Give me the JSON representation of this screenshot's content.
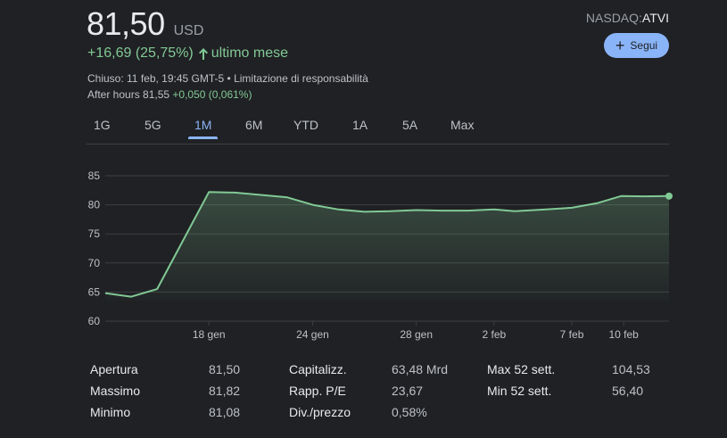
{
  "quote": {
    "price": "81,50",
    "currency": "USD",
    "change": "+16,69 (25,75%)",
    "period": "ultimo mese",
    "closed_info": "Chiuso: 11 feb, 19:45 GMT-5 • Limitazione di responsabilità",
    "after_hours_label": "After hours 81,55",
    "after_hours_change": "+0,050 (0,061%)"
  },
  "ticker": {
    "exchange": "NASDAQ:",
    "symbol": "ATVI"
  },
  "follow_button": {
    "label": "Segui"
  },
  "tabs": [
    {
      "label": "1G",
      "active": false
    },
    {
      "label": "5G",
      "active": false
    },
    {
      "label": "1M",
      "active": true
    },
    {
      "label": "6M",
      "active": false
    },
    {
      "label": "YTD",
      "active": false
    },
    {
      "label": "1A",
      "active": false
    },
    {
      "label": "5A",
      "active": false
    },
    {
      "label": "Max",
      "active": false
    }
  ],
  "colors": {
    "line": "#81c995",
    "positive": "#81c995",
    "accent": "#8ab4f8",
    "grid": "#3c4043",
    "background": "#202124"
  },
  "chart_data": {
    "type": "area",
    "title": "",
    "xlabel": "",
    "ylabel": "",
    "ylim": [
      60,
      85
    ],
    "yticks": [
      60,
      65,
      70,
      75,
      80,
      85
    ],
    "ytick_labels": [
      "60",
      "65",
      "70",
      "75",
      "80",
      "85"
    ],
    "xtick_labels": [
      "18 gen",
      "24 gen",
      "28 gen",
      "2 feb",
      "7 feb",
      "10 feb"
    ],
    "xtick_index": [
      4,
      8,
      12,
      15,
      18,
      20
    ],
    "grid": true,
    "series": [
      {
        "values": [
          64.81,
          64.2,
          65.5,
          82.2,
          82.1,
          81.7,
          81.3,
          80.0,
          79.2,
          78.8,
          78.9,
          79.1,
          79.0,
          79.0,
          79.2,
          78.9,
          79.2,
          79.5,
          80.3,
          81.5,
          81.45,
          81.5
        ]
      }
    ],
    "x_index": [
      0,
      1,
      2,
      4,
      5,
      6,
      7,
      8,
      9,
      10,
      11,
      12,
      13,
      14,
      15,
      15.8,
      17,
      18,
      19,
      19.9,
      20.8,
      21.75
    ]
  },
  "stats": [
    {
      "label": "Apertura",
      "value": "81,50"
    },
    {
      "label": "Massimo",
      "value": "81,82"
    },
    {
      "label": "Minimo",
      "value": "81,08"
    },
    {
      "label": "Capitalizz.",
      "value": "63,48 Mrd"
    },
    {
      "label": "Rapp. P/E",
      "value": "23,67"
    },
    {
      "label": "Div./prezzo",
      "value": "0,58%"
    },
    {
      "label": "Max 52 sett.",
      "value": "104,53"
    },
    {
      "label": "Min 52 sett.",
      "value": "56,40"
    }
  ]
}
